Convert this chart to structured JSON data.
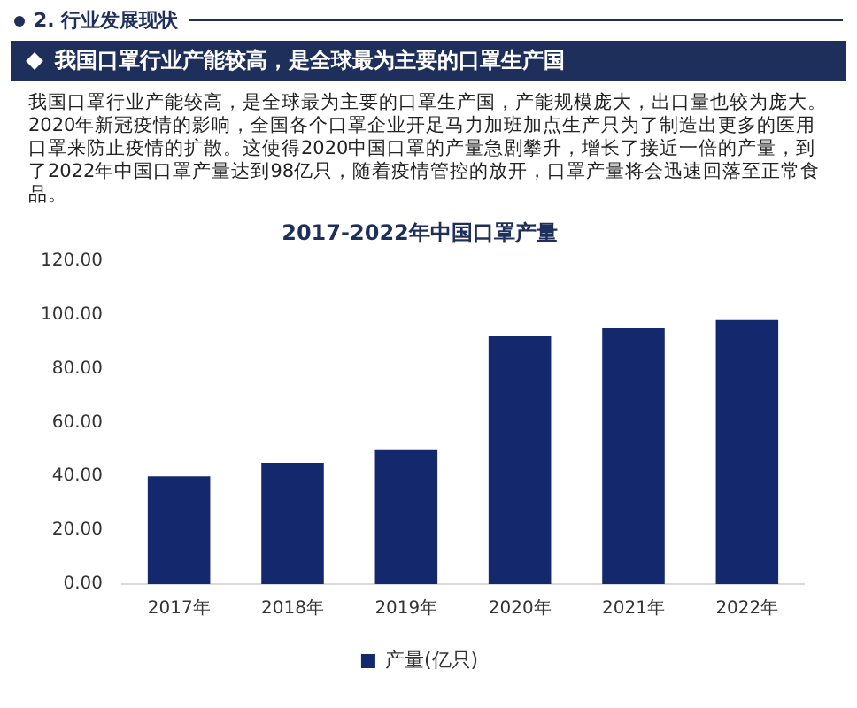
{
  "chart_data": {
    "type": "bar",
    "title": "2017-2022年中国口罩产量",
    "subtitle": "我国口罩行业产能较高，是全球最为主要的口罩生产国",
    "annotations": [
      "2. 行业发展现状",
      "我国口罩行业产能较高，是全球最为主要的口罩生产国，产能规模庞大，出口量也较为庞大。2020年新冠疫情的影响，全国各个口罩企业开足马力加班加点生产只为了制造出更多的医用口罩来防止疫情的扩散。这使得2020中国口罩的产量急剧攀升，增长了接近一倍的产量，到了2022年中国口罩产量达到98亿只，随着疫情管控的放开，口罩产量将会迅速回落至正常食品。"
    ],
    "categories": [
      "2017年",
      "2018年",
      "2019年",
      "2020年",
      "2021年",
      "2022年"
    ],
    "series": [
      {
        "name": "产量(亿只)",
        "color": "#14286e",
        "values": [
          40,
          45,
          50,
          92,
          95,
          98
        ]
      }
    ],
    "ylim": [
      0,
      120
    ],
    "yticks": [
      {
        "value": 0,
        "label": "0.00"
      },
      {
        "value": 20,
        "label": "20.00"
      },
      {
        "value": 40,
        "label": "40.00"
      },
      {
        "value": 60,
        "label": "60.00"
      },
      {
        "value": 80,
        "label": "80.00"
      },
      {
        "value": 100,
        "label": "100.00"
      },
      {
        "value": 120,
        "label": "120.00"
      }
    ],
    "grid": false,
    "legend": "bottom"
  }
}
